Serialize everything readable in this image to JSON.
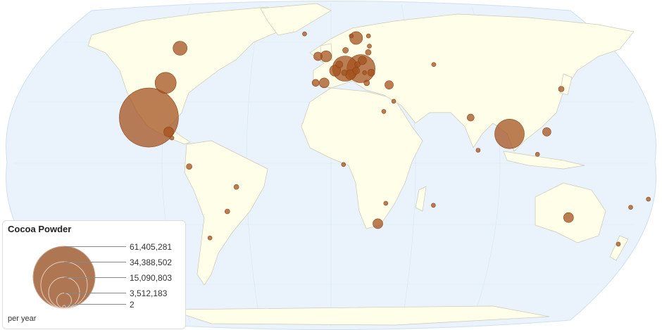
{
  "legend": {
    "title": "Cocoa Powder",
    "unit": "per year",
    "scale_values": [
      "61,405,281",
      "34,388,502",
      "15,090,803",
      "3,512,183",
      "2"
    ],
    "scale_numbers": [
      61405281,
      34388502,
      15090803,
      3512183,
      2
    ]
  },
  "colors": {
    "bubble": "#a4531f",
    "land": "#fefee9",
    "ocean": "#eaf3fb"
  },
  "bubbles": [
    {
      "lat": 21,
      "lon": -103,
      "value": 56000000
    },
    {
      "lat": 38,
      "lon": -97,
      "value": 7100000
    },
    {
      "lat": 55,
      "lon": -94,
      "value": 3200000
    },
    {
      "lat": 14,
      "lon": -91,
      "value": 1560000
    },
    {
      "lat": 11,
      "lon": -89,
      "value": 290000
    },
    {
      "lat": -3,
      "lon": -79,
      "value": 510000
    },
    {
      "lat": -13,
      "lon": -53,
      "value": 390000
    },
    {
      "lat": -25,
      "lon": -59,
      "value": 390000
    },
    {
      "lat": -38,
      "lon": -71,
      "value": 290000
    },
    {
      "lat": 62,
      "lon": -17,
      "value": 290000
    },
    {
      "lat": 51,
      "lon": -3,
      "value": 2000000
    },
    {
      "lat": 51,
      "lon": -8,
      "value": 1140000
    },
    {
      "lat": 38,
      "lon": -4,
      "value": 1560000
    },
    {
      "lat": 38,
      "lon": -9,
      "value": 790000
    },
    {
      "lat": 44,
      "lon": 2.5,
      "value": 2000000
    },
    {
      "lat": 45,
      "lon": 8.5,
      "value": 10300000
    },
    {
      "lat": 47,
      "lon": 5,
      "value": 790000
    },
    {
      "lat": 45,
      "lon": 18,
      "value": 12700000
    },
    {
      "lat": 42,
      "lon": 11.5,
      "value": 1560000
    },
    {
      "lat": 43,
      "lon": 8,
      "value": 510000
    },
    {
      "lat": 44,
      "lon": 15,
      "value": 790000
    },
    {
      "lat": 49,
      "lon": 19,
      "value": 1140000
    },
    {
      "lat": 47,
      "lon": 16,
      "value": 510000
    },
    {
      "lat": 54,
      "lon": 9,
      "value": 510000
    },
    {
      "lat": 60,
      "lon": 16,
      "value": 2600000
    },
    {
      "lat": 61,
      "lon": 13,
      "value": 290000
    },
    {
      "lat": 61,
      "lon": 24,
      "value": 290000
    },
    {
      "lat": 56,
      "lon": 24,
      "value": 290000
    },
    {
      "lat": 53,
      "lon": 23,
      "value": 510000
    },
    {
      "lat": 47,
      "lon": 62,
      "value": 290000
    },
    {
      "lat": 38,
      "lon": 21,
      "value": 510000
    },
    {
      "lat": 37,
      "lon": 34,
      "value": 1140000
    },
    {
      "lat": 43,
      "lon": 24,
      "value": 790000
    },
    {
      "lat": 43,
      "lon": 20,
      "value": 290000
    },
    {
      "lat": 29,
      "lon": 36,
      "value": 290000
    },
    {
      "lat": 24,
      "lon": 30,
      "value": 290000
    },
    {
      "lat": -2,
      "lon": 7,
      "value": 290000
    },
    {
      "lat": -31,
      "lon": 27,
      "value": 1560000
    },
    {
      "lat": -21,
      "lon": 31,
      "value": 290000
    },
    {
      "lat": -22,
      "lon": 58,
      "value": 290000
    },
    {
      "lat": 21,
      "lon": 79,
      "value": 790000
    },
    {
      "lat": 5,
      "lon": 82,
      "value": 290000
    },
    {
      "lat": 13,
      "lon": 100,
      "value": 14000000
    },
    {
      "lat": 14,
      "lon": 121,
      "value": 1140000
    },
    {
      "lat": 3,
      "lon": 115,
      "value": 290000
    },
    {
      "lat": 35,
      "lon": 134,
      "value": 510000
    },
    {
      "lat": -28,
      "lon": 136,
      "value": 1560000
    },
    {
      "lat": -41,
      "lon": 170,
      "value": 290000
    },
    {
      "lat": -23,
      "lon": 170,
      "value": 290000
    },
    {
      "lat": -19,
      "lon": 179,
      "value": 290000
    }
  ]
}
